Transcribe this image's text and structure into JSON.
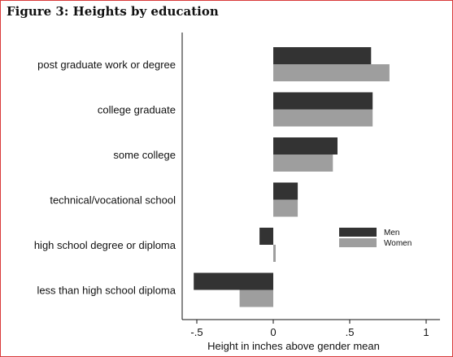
{
  "chart_data": {
    "type": "bar",
    "orientation": "horizontal",
    "title": "Figure 3: Heights by education",
    "xlabel": "Height in inches above gender mean",
    "ylabel": "",
    "categories": [
      "post graduate work or degree",
      "college graduate",
      "some college",
      "technical/vocational school",
      "high school degree or diploma",
      "less than high school diploma"
    ],
    "series": [
      {
        "name": "Men",
        "color": "#333333",
        "values": [
          0.64,
          0.65,
          0.42,
          0.16,
          -0.09,
          -0.52
        ]
      },
      {
        "name": "Women",
        "color": "#9e9e9e",
        "values": [
          0.76,
          0.65,
          0.39,
          0.16,
          0.01,
          -0.22
        ]
      }
    ],
    "xlim": [
      -0.55,
      1.05
    ],
    "xticks": [
      -0.5,
      0,
      0.5,
      1
    ],
    "xtick_labels": [
      "-.5",
      "0",
      ".5",
      "1"
    ],
    "legend_position": "right",
    "grid": false
  }
}
